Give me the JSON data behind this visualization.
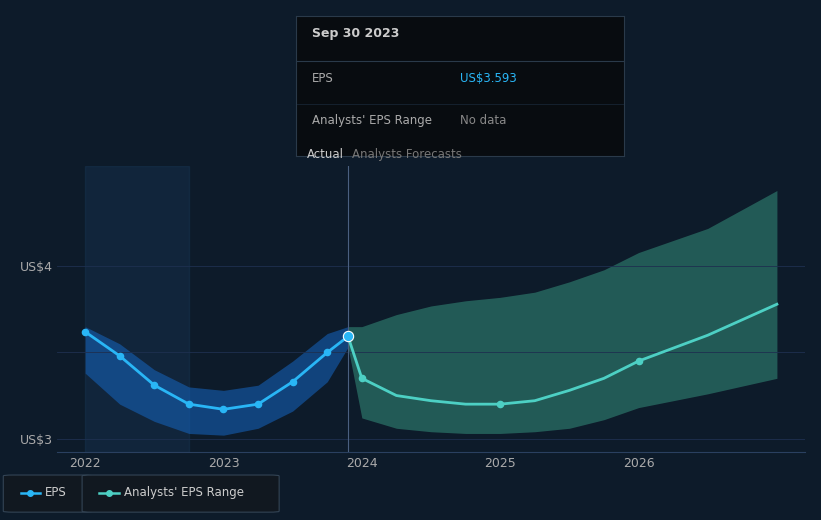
{
  "bg_color": "#0d1b2a",
  "chart_bg": "#0d1b2a",
  "title_tooltip": "Sep 30 2023",
  "eps_tooltip_val": "US$3.593",
  "eps_tooltip_label": "EPS",
  "analysts_tooltip_label": "Analysts' EPS Range",
  "analysts_tooltip_val": "No data",
  "actual_x": [
    2022.0,
    2022.25,
    2022.5,
    2022.75,
    2023.0,
    2023.25,
    2023.5,
    2023.75,
    2023.9
  ],
  "actual_y": [
    3.62,
    3.48,
    3.31,
    3.2,
    3.17,
    3.2,
    3.33,
    3.5,
    3.593
  ],
  "actual_fill_upper": [
    3.65,
    3.55,
    3.4,
    3.3,
    3.28,
    3.31,
    3.45,
    3.61,
    3.65
  ],
  "actual_fill_lower": [
    3.38,
    3.2,
    3.1,
    3.03,
    3.02,
    3.06,
    3.16,
    3.33,
    3.53
  ],
  "forecast_x": [
    2023.9,
    2024.0,
    2024.25,
    2024.5,
    2024.75,
    2025.0,
    2025.25,
    2025.5,
    2025.75,
    2026.0,
    2026.5,
    2027.0
  ],
  "forecast_y": [
    3.593,
    3.35,
    3.25,
    3.22,
    3.2,
    3.2,
    3.22,
    3.28,
    3.35,
    3.45,
    3.6,
    3.78
  ],
  "forecast_upper": [
    3.65,
    3.65,
    3.72,
    3.77,
    3.8,
    3.82,
    3.85,
    3.91,
    3.98,
    4.08,
    4.22,
    4.44
  ],
  "forecast_lower": [
    3.53,
    3.12,
    3.06,
    3.04,
    3.03,
    3.03,
    3.04,
    3.06,
    3.11,
    3.18,
    3.26,
    3.35
  ],
  "split_x": 2023.9,
  "ylim_min": 2.92,
  "ylim_max": 4.58,
  "xlim_min": 2021.8,
  "xlim_max": 2027.2,
  "yticks": [
    3.0,
    3.5,
    4.0
  ],
  "ytick_labels": [
    "US$3",
    "",
    "US$4"
  ],
  "xtick_positions": [
    2022,
    2023,
    2024,
    2025,
    2026
  ],
  "xtick_labels": [
    "2022",
    "2023",
    "2024",
    "2025",
    "2026"
  ],
  "actual_line_color": "#29b6f6",
  "actual_fill_color": "#1565c0",
  "actual_fill_alpha": 0.55,
  "forecast_line_color": "#4dd0c4",
  "forecast_fill_color": "#2e7d6e",
  "forecast_fill_alpha": 0.65,
  "vline_color": "#4a6080",
  "grid_color": "#1e3050",
  "actual_label": "Actual",
  "forecast_label": "Analysts Forecasts",
  "legend_eps_label": "EPS",
  "legend_range_label": "Analysts' EPS Range",
  "tooltip_bg": "#080c10",
  "tooltip_border": "#2a3a4a",
  "tooltip_title_color": "#cccccc",
  "tooltip_eps_color": "#29b6f6",
  "tooltip_nodata_color": "#888888",
  "highlight_span_x0": 2022.0,
  "highlight_span_x1": 2022.75,
  "highlight_span_color": "#1a3a5c",
  "highlight_span_alpha": 0.35
}
